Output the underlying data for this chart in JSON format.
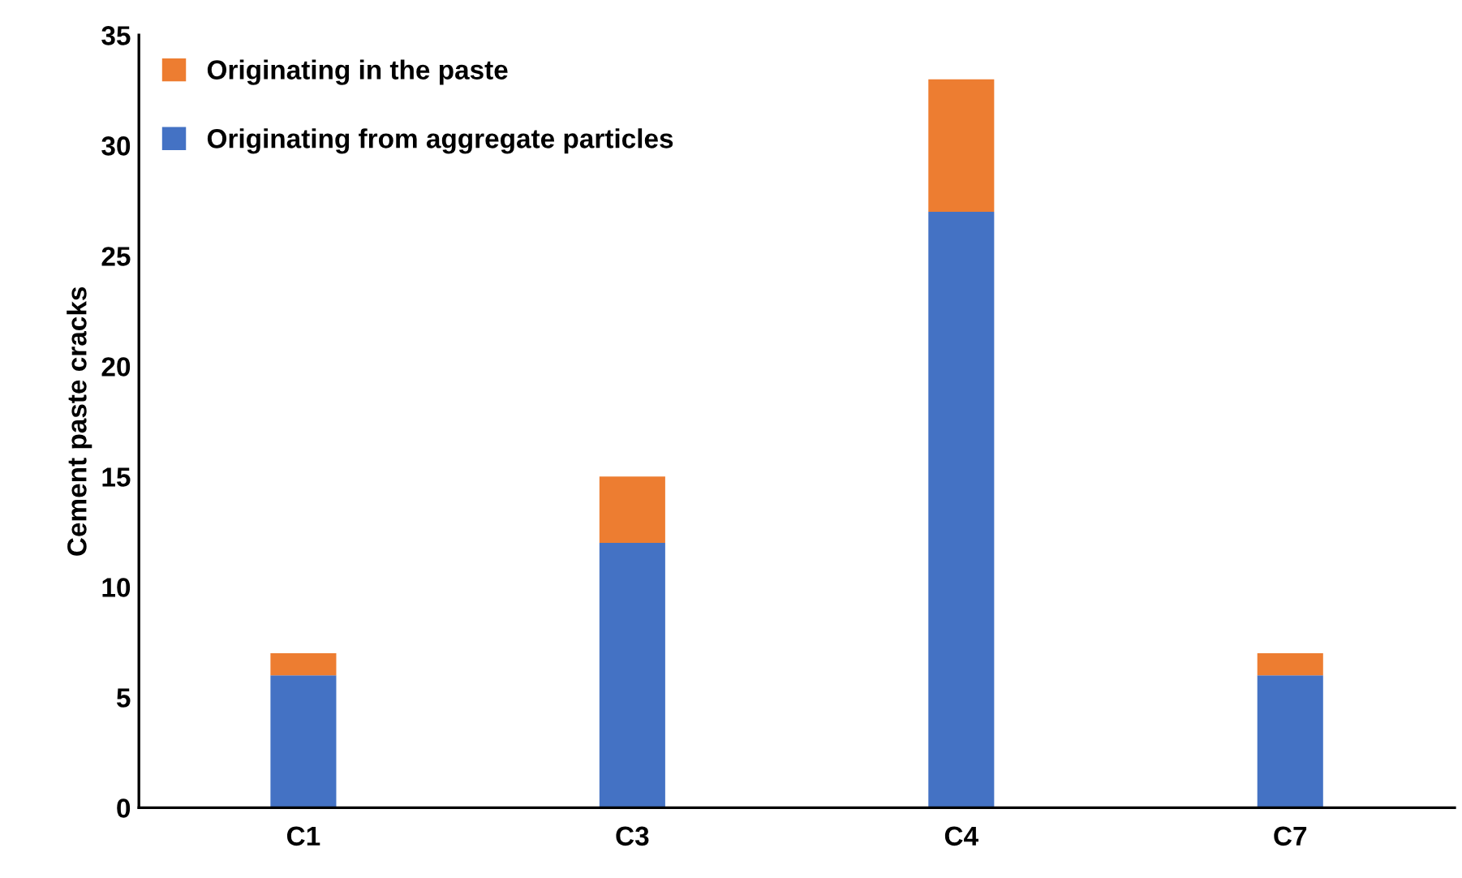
{
  "chart_data": {
    "type": "bar",
    "stacked": true,
    "ylabel": "Cement paste cracks",
    "categories": [
      "C1",
      "C3",
      "C4",
      "C7"
    ],
    "series": [
      {
        "name": "Originating from aggregate particles",
        "color": "#4472c4",
        "values": [
          6,
          12,
          27,
          6
        ]
      },
      {
        "name": "Originating in the paste",
        "color": "#ed7d31",
        "values": [
          1,
          3,
          6,
          1
        ]
      }
    ],
    "ylim": [
      0,
      35
    ],
    "yticks": [
      0,
      5,
      10,
      15,
      20,
      25,
      30,
      35
    ],
    "grid": false,
    "legend": "top left"
  }
}
